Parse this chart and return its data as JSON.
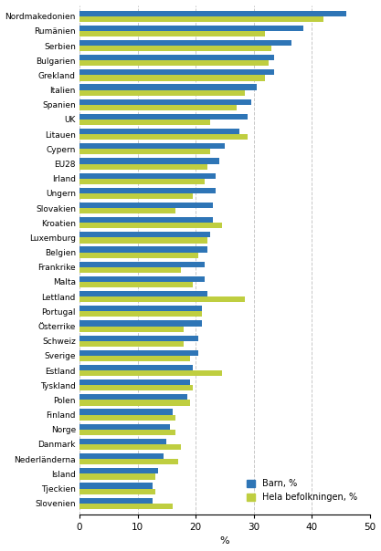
{
  "countries": [
    "Nordmakedonien",
    "Rumänien",
    "Serbien",
    "Bulgarien",
    "Grekland",
    "Italien",
    "Spanien",
    "UK",
    "Litauen",
    "Cypern",
    "EU28",
    "Irland",
    "Ungern",
    "Slovakien",
    "Kroatien",
    "Luxemburg",
    "Belgien",
    "Frankrike",
    "Malta",
    "Lettland",
    "Portugal",
    "Österrike",
    "Schweiz",
    "Sverige",
    "Estland",
    "Tyskland",
    "Polen",
    "Finland",
    "Norge",
    "Danmark",
    "Nederländerna",
    "Island",
    "Tjeckien",
    "Slovenien"
  ],
  "barn": [
    46.0,
    38.5,
    36.5,
    33.5,
    33.5,
    30.5,
    29.5,
    29.0,
    27.5,
    25.0,
    24.0,
    23.5,
    23.5,
    23.0,
    23.0,
    22.5,
    22.0,
    21.5,
    21.5,
    22.0,
    21.0,
    21.0,
    20.5,
    20.5,
    19.5,
    19.0,
    18.5,
    16.0,
    15.5,
    15.0,
    14.5,
    13.5,
    12.5,
    12.5
  ],
  "hela": [
    42.0,
    32.0,
    33.0,
    32.5,
    32.0,
    28.5,
    27.0,
    22.5,
    29.0,
    22.5,
    22.0,
    21.5,
    19.5,
    16.5,
    24.5,
    22.0,
    20.5,
    17.5,
    19.5,
    28.5,
    21.0,
    18.0,
    18.0,
    19.0,
    24.5,
    19.5,
    19.0,
    16.5,
    16.5,
    17.5,
    17.0,
    13.0,
    13.0,
    16.0
  ],
  "barn_color": "#2E75B6",
  "hela_color": "#BFCE40",
  "xlabel": "%",
  "xlim": [
    0,
    50
  ],
  "xticks": [
    0,
    10,
    20,
    30,
    40,
    50
  ],
  "legend_barn": "Barn, %",
  "legend_hela": "Hela befolkningen, %",
  "grid_color": "#C8C8C8",
  "background_color": "#FFFFFF"
}
